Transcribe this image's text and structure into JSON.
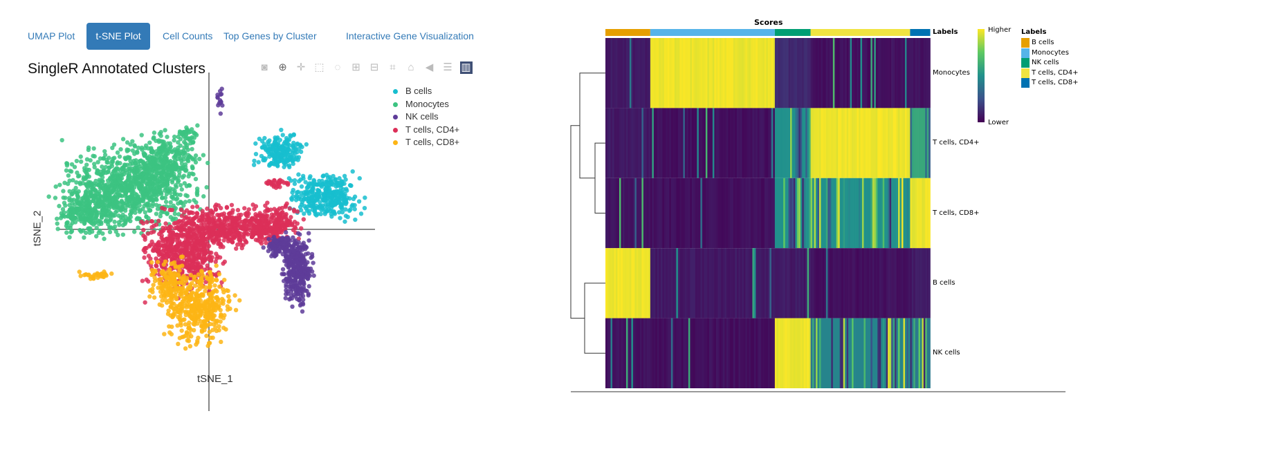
{
  "tabs": [
    {
      "label": "UMAP Plot"
    },
    {
      "label": "t-SNE Plot",
      "active": true
    },
    {
      "label": "Cell Counts"
    },
    {
      "label": "Top Genes by Cluster"
    },
    {
      "label": "Interactive Gene Visualization"
    }
  ],
  "toolbar": [
    "camera-icon",
    "zoom-icon",
    "pan-icon",
    "box-select-icon",
    "lasso-icon",
    "zoom-in-icon",
    "zoom-out-icon",
    "autoscale-icon",
    "home-icon",
    "hover-closest-icon",
    "hover-compare-icon",
    "plotly-logo-icon"
  ],
  "chart_data": [
    {
      "type": "scatter",
      "title": "SingleR Annotated Clusters",
      "xlabel": "tSNE_1",
      "ylabel": "tSNE_2",
      "legend_position": "top-right",
      "series": [
        {
          "name": "B cells",
          "color": "#17becf"
        },
        {
          "name": "Monocytes",
          "color": "#3cc381"
        },
        {
          "name": "NK cells",
          "color": "#5e3c99"
        },
        {
          "name": "T cells, CD4+",
          "color": "#dc2f58"
        },
        {
          "name": "T cells, CD8+",
          "color": "#fdb515"
        }
      ]
    },
    {
      "type": "heatmap",
      "title": "Scores",
      "annotation_label": "Labels",
      "colorbar": {
        "high": "Higher",
        "low": "Lower"
      },
      "rows": [
        "Monocytes",
        "T cells, CD4+",
        "T cells, CD8+",
        "B cells",
        "NK cells"
      ],
      "column_groups": [
        {
          "name": "B cells",
          "color": "#e69f00",
          "fraction": 0.138
        },
        {
          "name": "Monocytes",
          "color": "#56b4e9",
          "fraction": 0.383
        },
        {
          "name": "NK cells",
          "color": "#009e73",
          "fraction": 0.11
        },
        {
          "name": "T cells, CD4+",
          "color": "#f0e442",
          "fraction": 0.306
        },
        {
          "name": "T cells, CD8+",
          "color": "#0072b2",
          "fraction": 0.062
        }
      ],
      "scores": [
        [
          0.05,
          1,
          0.1,
          0.02,
          0.02
        ],
        [
          0.05,
          0.02,
          0.5,
          1,
          0.6
        ],
        [
          0.03,
          0.02,
          0.5,
          0.5,
          1
        ],
        [
          1,
          0.05,
          0.05,
          0.02,
          0.05
        ],
        [
          0.03,
          0.02,
          1,
          0.45,
          0.4
        ]
      ],
      "legend_title": "Labels"
    }
  ]
}
